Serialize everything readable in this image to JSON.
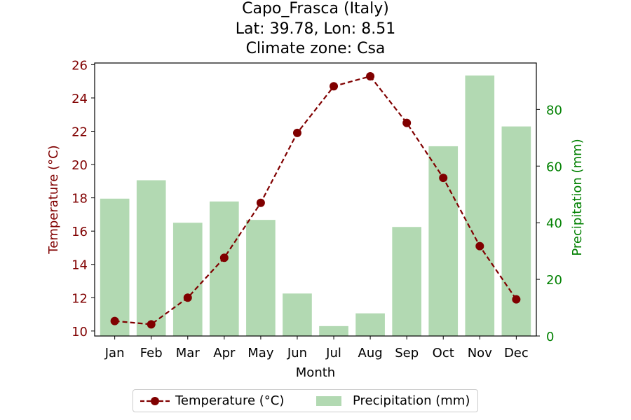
{
  "title": {
    "line1": "Capo_Frasca (Italy)",
    "line2": "Lat: 39.78, Lon: 8.51",
    "line3": "Climate zone: Csa"
  },
  "colors": {
    "temperature": "#800000",
    "precipitation": "#b2d9b2",
    "precipitation_axis": "#008000"
  },
  "chart_data": {
    "type": "bar+line",
    "categories": [
      "Jan",
      "Feb",
      "Mar",
      "Apr",
      "May",
      "Jun",
      "Jul",
      "Aug",
      "Sep",
      "Oct",
      "Nov",
      "Dec"
    ],
    "xlabel": "Month",
    "series": [
      {
        "name": "Temperature (°C)",
        "type": "line",
        "axis": "left",
        "values": [
          10.6,
          10.4,
          12.0,
          14.4,
          17.7,
          21.9,
          24.7,
          25.3,
          22.5,
          19.2,
          15.1,
          11.9
        ]
      },
      {
        "name": "Precipitation (mm)",
        "type": "bar",
        "axis": "right",
        "values": [
          48.5,
          55.0,
          40.0,
          47.5,
          41.0,
          15.0,
          3.5,
          8.0,
          38.5,
          67.0,
          92.0,
          74.0
        ]
      }
    ],
    "y_left": {
      "label": "Temperature (°C)",
      "ylim": [
        9.7,
        26.1
      ],
      "ticks": [
        10,
        12,
        14,
        16,
        18,
        20,
        22,
        24,
        26
      ]
    },
    "y_right": {
      "label": "Precipitation (mm)",
      "ylim": [
        0,
        96.4
      ],
      "ticks": [
        0,
        20,
        40,
        60,
        80
      ]
    },
    "grid": false,
    "legend_position": "bottom-center"
  }
}
